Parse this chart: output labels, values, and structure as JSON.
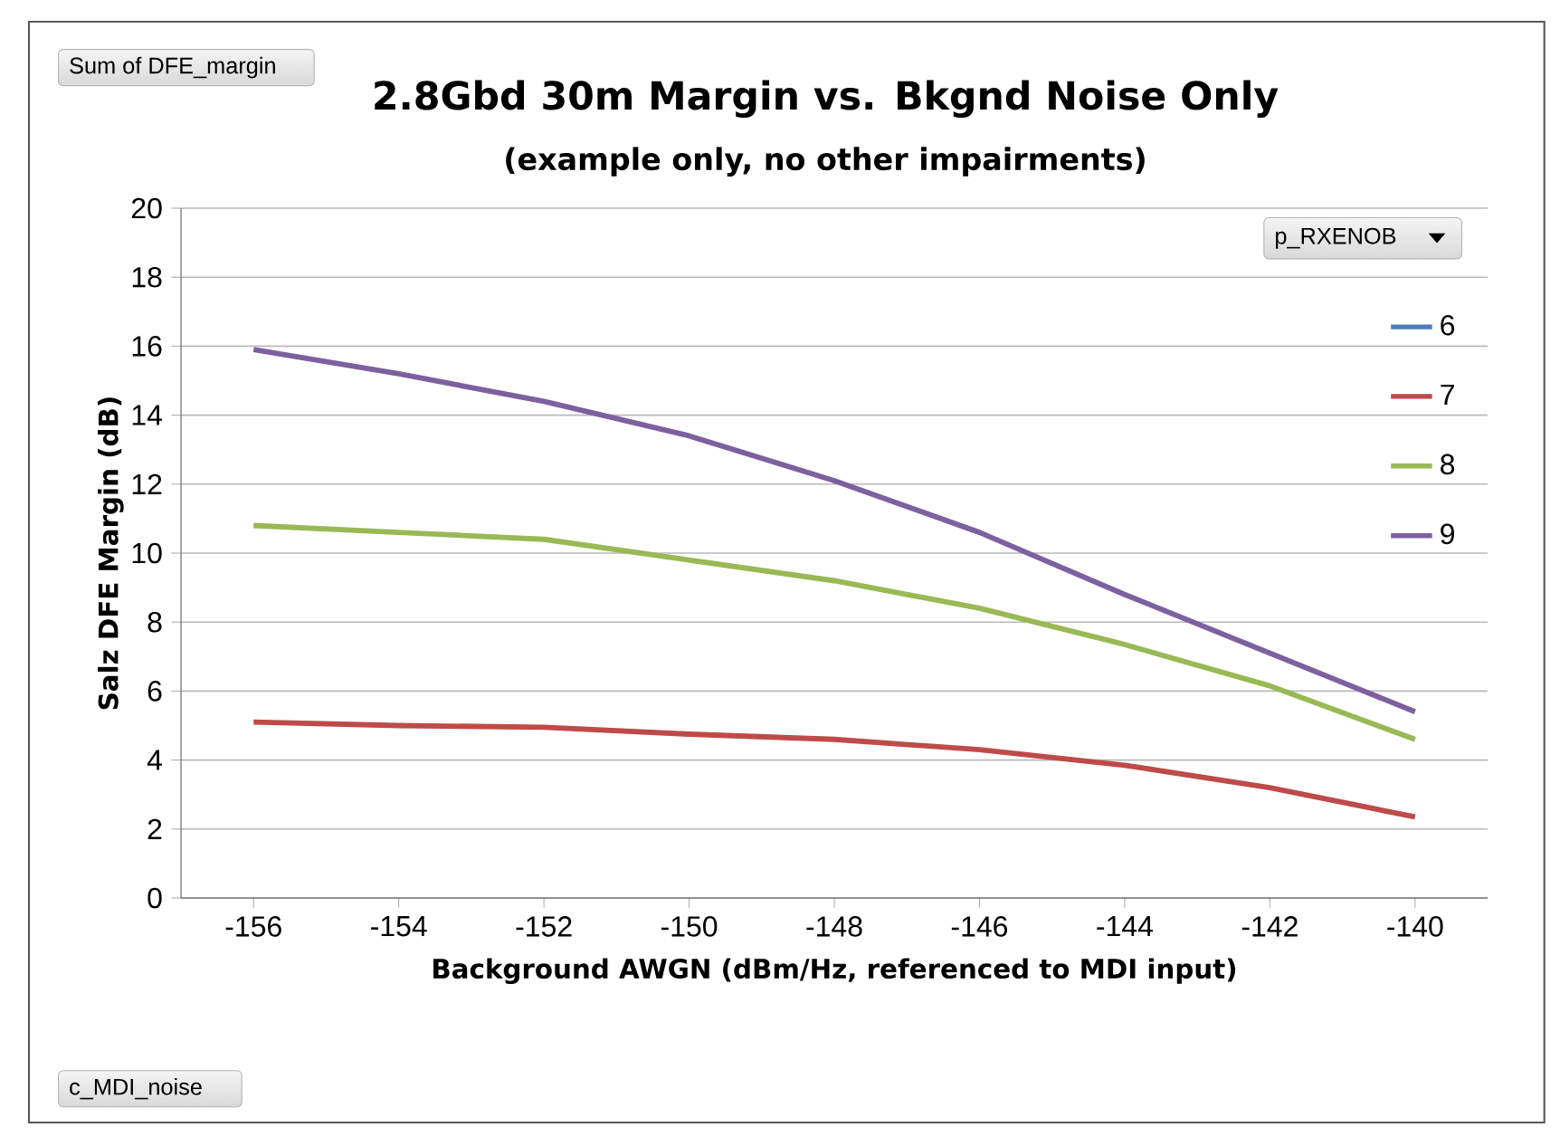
{
  "chart_data": {
    "type": "line",
    "title": "2.8Gbd 30m Margin vs. Bkgnd Noise Only",
    "subtitle": "(example only, no other impairments)",
    "xlabel": "Background AWGN (dBm/Hz, referenced to MDI input)",
    "ylabel": "Salz DFE Margin (dB)",
    "legend_title": "p_RXENOB",
    "annotations": [
      "Sum of DFE_margin",
      "c_MDI_noise"
    ],
    "x": [
      -156,
      -154,
      -152,
      -150,
      -148,
      -146,
      -144,
      -142,
      -140
    ],
    "series": [
      {
        "name": "6",
        "color": "#4a7ebb",
        "values": [
          null,
          null,
          null,
          null,
          null,
          null,
          null,
          null,
          null
        ]
      },
      {
        "name": "7",
        "color": "#be4b48",
        "values": [
          5.1,
          5.0,
          4.95,
          4.75,
          4.6,
          4.3,
          3.85,
          3.2,
          2.35
        ]
      },
      {
        "name": "8",
        "color": "#98b954",
        "values": [
          10.8,
          10.6,
          10.4,
          9.8,
          9.2,
          8.4,
          7.35,
          6.15,
          4.6
        ]
      },
      {
        "name": "9",
        "color": "#7d60a0",
        "values": [
          15.9,
          15.2,
          14.4,
          13.4,
          12.1,
          10.6,
          8.8,
          7.1,
          5.4
        ]
      }
    ],
    "xlim": [
      -157,
      -139
    ],
    "xticks": [
      -156,
      -154,
      -152,
      -150,
      -148,
      -146,
      -144,
      -142,
      -140
    ],
    "ylim": [
      0,
      20
    ],
    "yticks": [
      0,
      2,
      4,
      6,
      8,
      10,
      12,
      14,
      16,
      18,
      20
    ],
    "grid": "y",
    "legend": "top right",
    "marker": "none",
    "line_style": "solid"
  }
}
